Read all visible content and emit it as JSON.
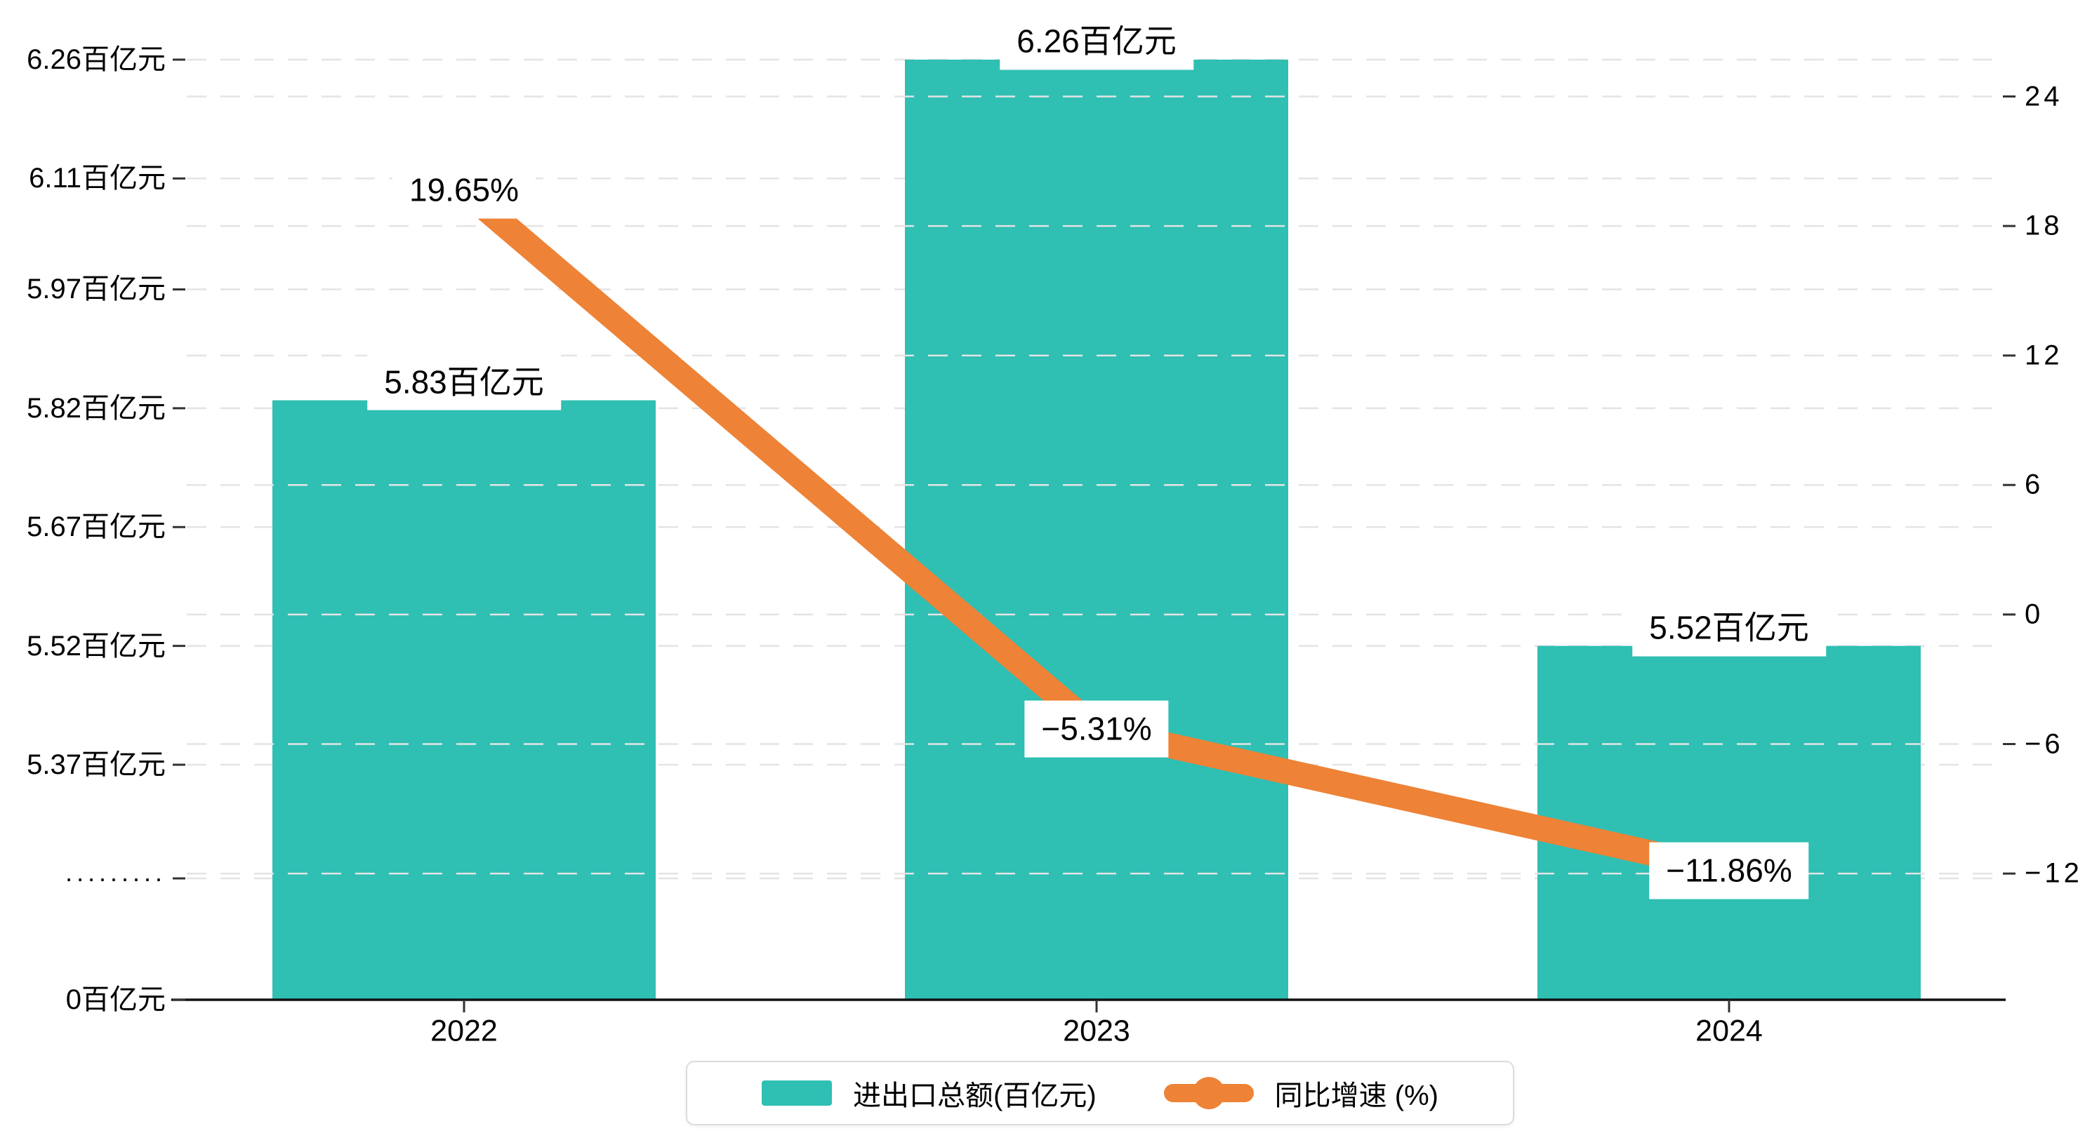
{
  "chart_data": {
    "type": "bar+line",
    "categories": [
      "2022",
      "2023",
      "2024"
    ],
    "series": [
      {
        "name": "进出口总额(百亿元)",
        "type": "bar",
        "values": [
          5.83,
          6.26,
          5.52
        ],
        "labels": [
          "5.83百亿元",
          "6.26百亿元",
          "5.52百亿元"
        ],
        "color": "#2FBFB3"
      },
      {
        "name": "同比增速 (%)",
        "type": "line",
        "values": [
          19.65,
          -5.31,
          -11.86
        ],
        "labels": [
          "19.65%",
          "−5.31%",
          "−11.86%"
        ],
        "color": "#EE8236"
      }
    ],
    "left_axis": {
      "unit": "百亿元",
      "ticks": [
        "6.26百亿元",
        "6.11百亿元",
        "5.97百亿元",
        "5.82百亿元",
        "5.67百亿元",
        "5.52百亿元",
        "5.37百亿元",
        "·········",
        "0百亿元"
      ],
      "tick_values": [
        6.26,
        6.11,
        5.97,
        5.82,
        5.67,
        5.52,
        5.37,
        null,
        0
      ],
      "axis_break": true
    },
    "right_axis": {
      "unit": "%",
      "ticks": [
        "24",
        "18",
        "12",
        "6",
        "0",
        "−6",
        "−12"
      ],
      "tick_values": [
        24,
        18,
        12,
        6,
        0,
        -6,
        -12
      ],
      "range": [
        -12,
        24
      ]
    },
    "grid": "dashed",
    "legend_position": "bottom",
    "title": "",
    "colors": {
      "bar": "#2FBFB3",
      "line": "#EE8236",
      "axis": "#111111",
      "gridline": "#e4e4e4",
      "label_background": "#ffffff"
    }
  },
  "legend": {
    "items": [
      {
        "label": "进出口总额(百亿元)"
      },
      {
        "label": "同比增速 (%)"
      }
    ]
  }
}
